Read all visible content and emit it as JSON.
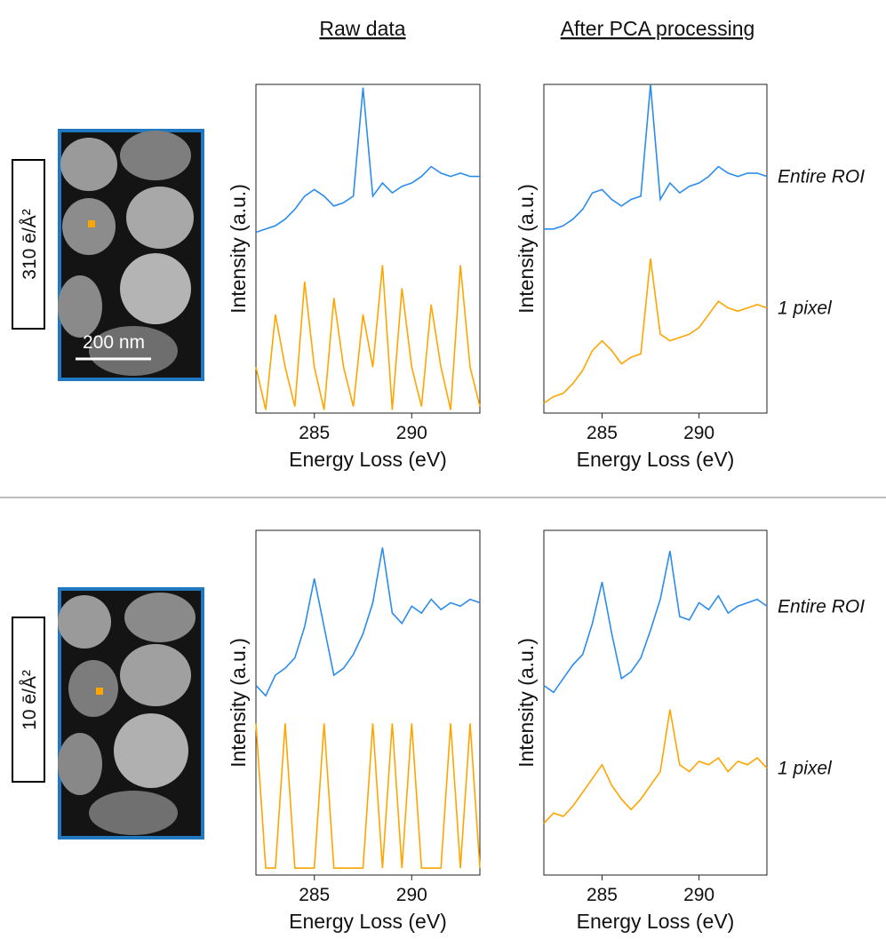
{
  "column_titles": [
    "Raw data",
    "After PCA processing"
  ],
  "rows": [
    {
      "label": "310 ē/Å²",
      "scale_bar": "200 nm"
    },
    {
      "label": "10 ē/Å²"
    }
  ],
  "chart_data": [
    {
      "type": "line",
      "xlabel": "Energy Loss (eV)",
      "ylabel": "Intensity (a.u.)",
      "x": [
        282,
        282.5,
        283,
        283.5,
        284,
        284.5,
        285,
        285.5,
        286,
        286.5,
        287,
        287.5,
        288,
        288.5,
        289,
        289.5,
        290,
        290.5,
        291,
        291.5,
        292,
        292.5,
        293,
        293.5
      ],
      "xlim": [
        282,
        293.5
      ],
      "xticks": [
        285,
        290
      ],
      "ylim": [
        0,
        100
      ],
      "series": [
        {
          "color": "#2b8cee",
          "values": [
            55,
            56,
            57,
            59,
            62,
            66,
            68,
            66,
            63,
            64,
            66,
            99,
            66,
            70,
            67,
            69,
            70,
            72,
            75,
            73,
            72,
            73,
            72,
            72
          ]
        },
        {
          "color": "#ffa500",
          "values": [
            14,
            1,
            30,
            14,
            2,
            40,
            14,
            1,
            35,
            14,
            2,
            30,
            14,
            45,
            1,
            38,
            14,
            2,
            33,
            14,
            1,
            45,
            14,
            2
          ]
        }
      ]
    },
    {
      "type": "line",
      "xlabel": "Energy Loss (eV)",
      "ylabel": "Intensity (a.u.)",
      "x": [
        282,
        282.5,
        283,
        283.5,
        284,
        284.5,
        285,
        285.5,
        286,
        286.5,
        287,
        287.5,
        288,
        288.5,
        289,
        289.5,
        290,
        290.5,
        291,
        291.5,
        292,
        292.5,
        293,
        293.5
      ],
      "xlim": [
        282,
        293.5
      ],
      "xticks": [
        285,
        290
      ],
      "ylim": [
        0,
        100
      ],
      "series": [
        {
          "name": "Entire ROI",
          "color": "#2b8cee",
          "values": [
            56,
            56,
            57,
            59,
            62,
            67,
            68,
            65,
            63,
            65,
            66,
            100,
            65,
            70,
            67,
            69,
            70,
            72,
            75,
            73,
            72,
            73,
            73,
            72
          ]
        },
        {
          "name": "1 pixel",
          "color": "#ffa500",
          "values": [
            3,
            5,
            6,
            9,
            13,
            19,
            22,
            19,
            15,
            17,
            18,
            47,
            24,
            22,
            23,
            24,
            26,
            30,
            34,
            32,
            31,
            32,
            33,
            32
          ]
        }
      ]
    },
    {
      "type": "line",
      "xlabel": "Energy Loss (eV)",
      "ylabel": "Intensity (a.u.)",
      "x": [
        282,
        282.5,
        283,
        283.5,
        284,
        284.5,
        285,
        285.5,
        286,
        286.5,
        287,
        287.5,
        288,
        288.5,
        289,
        289.5,
        290,
        290.5,
        291,
        291.5,
        292,
        292.5,
        293,
        293.5
      ],
      "xlim": [
        282,
        293.5
      ],
      "xticks": [
        285,
        290
      ],
      "ylim": [
        0,
        100
      ],
      "series": [
        {
          "color": "#2b8cee",
          "values": [
            55,
            52,
            58,
            60,
            63,
            72,
            86,
            72,
            58,
            60,
            64,
            70,
            79,
            95,
            76,
            73,
            78,
            76,
            80,
            77,
            79,
            78,
            80,
            79
          ]
        },
        {
          "color": "#ffa500",
          "values": [
            44,
            2,
            2,
            44,
            2,
            2,
            2,
            44,
            2,
            2,
            2,
            2,
            44,
            2,
            44,
            2,
            44,
            2,
            2,
            2,
            44,
            2,
            44,
            2
          ]
        }
      ]
    },
    {
      "type": "line",
      "xlabel": "Energy Loss (eV)",
      "ylabel": "Intensity (a.u.)",
      "x": [
        282,
        282.5,
        283,
        283.5,
        284,
        284.5,
        285,
        285.5,
        286,
        286.5,
        287,
        287.5,
        288,
        288.5,
        289,
        289.5,
        290,
        290.5,
        291,
        291.5,
        292,
        292.5,
        293,
        293.5
      ],
      "xlim": [
        282,
        293.5
      ],
      "xticks": [
        285,
        290
      ],
      "ylim": [
        0,
        100
      ],
      "series": [
        {
          "name": "Entire ROI",
          "color": "#2b8cee",
          "values": [
            55,
            53,
            57,
            61,
            64,
            73,
            85,
            70,
            57,
            59,
            63,
            71,
            80,
            94,
            75,
            74,
            79,
            77,
            81,
            76,
            78,
            79,
            80,
            78
          ]
        },
        {
          "name": "1 pixel",
          "color": "#ffa500",
          "values": [
            15,
            18,
            17,
            20,
            24,
            28,
            32,
            26,
            22,
            19,
            22,
            26,
            30,
            48,
            32,
            30,
            33,
            32,
            34,
            30,
            33,
            32,
            34,
            31
          ]
        }
      ]
    }
  ]
}
